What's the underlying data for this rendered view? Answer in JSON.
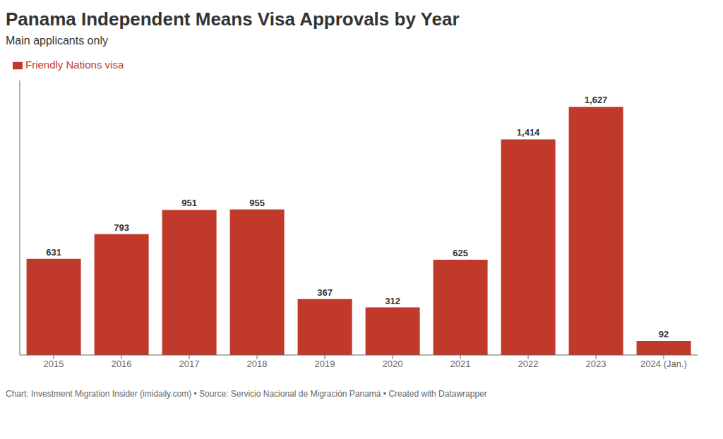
{
  "chart_data": {
    "type": "bar",
    "title": "Panama Independent Means Visa Approvals by Year",
    "subtitle": "Main applicants only",
    "annotations": [
      "Chart: Investment Migration Insider (imidaily.com) • Source: Servicio Nacional de Migración Panamá • Created with Datawrapper"
    ],
    "categories": [
      "2015",
      "2016",
      "2017",
      "2018",
      "2019",
      "2020",
      "2021",
      "2022",
      "2023",
      "2024 (Jan.)"
    ],
    "series": [
      {
        "name": "Friendly Nations visa",
        "color": "#c0392b",
        "values": [
          631,
          793,
          951,
          955,
          367,
          312,
          625,
          1414,
          1627,
          92
        ],
        "value_labels": [
          "631",
          "793",
          "951",
          "955",
          "367",
          "312",
          "625",
          "1,414",
          "1,627",
          "92"
        ]
      }
    ],
    "ylim": [
      0,
      1800
    ],
    "grid": false,
    "legend": "top-left",
    "data_labels": true,
    "tick_labels": "x"
  }
}
